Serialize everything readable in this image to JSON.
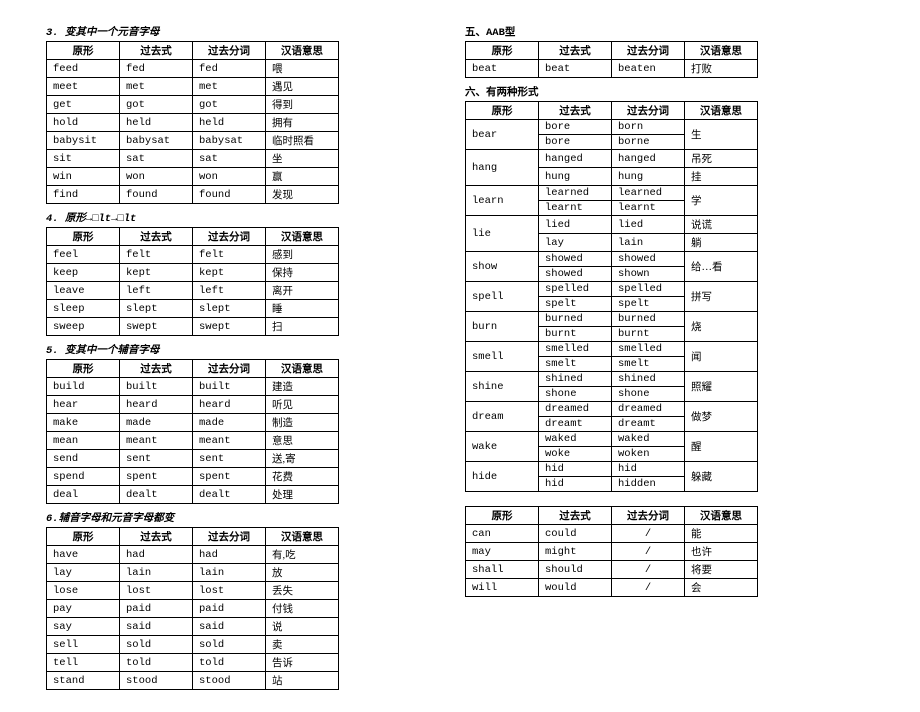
{
  "headers": {
    "c1": "原形",
    "c2": "过去式",
    "c3": "过去分词",
    "c4": "汉语意思"
  },
  "left": {
    "s3": {
      "title": "3. 变其中一个元音字母",
      "rows": [
        [
          "feed",
          "fed",
          "fed",
          "喂"
        ],
        [
          "meet",
          "met",
          "met",
          "遇见"
        ],
        [
          "get",
          "got",
          "got",
          "得到"
        ],
        [
          "hold",
          "held",
          "held",
          "拥有"
        ],
        [
          "babysit",
          "babysat",
          "babysat",
          "临时照看"
        ],
        [
          "sit",
          "sat",
          "sat",
          "坐"
        ],
        [
          "win",
          "won",
          "won",
          "赢"
        ],
        [
          "find",
          "found",
          "found",
          "发现"
        ]
      ]
    },
    "s4": {
      "title": "4. 原形→□lt→□lt",
      "rows": [
        [
          "feel",
          "felt",
          "felt",
          "感到"
        ],
        [
          "keep",
          "kept",
          "kept",
          "保持"
        ],
        [
          "leave",
          "left",
          "left",
          "离开"
        ],
        [
          "sleep",
          "slept",
          "slept",
          "睡"
        ],
        [
          "sweep",
          "swept",
          "swept",
          "扫"
        ]
      ]
    },
    "s5": {
      "title": "5. 变其中一个辅音字母",
      "rows": [
        [
          "build",
          "built",
          "built",
          "建造"
        ],
        [
          "hear",
          "heard",
          "heard",
          "听见"
        ],
        [
          "make",
          "made",
          "made",
          "制造"
        ],
        [
          "mean",
          "meant",
          "meant",
          "意思"
        ],
        [
          "send",
          "sent",
          "sent",
          "送,寄"
        ],
        [
          "spend",
          "spent",
          "spent",
          "花费"
        ],
        [
          "deal",
          "dealt",
          "dealt",
          "处理"
        ]
      ]
    },
    "s6": {
      "title": "6.辅音字母和元音字母都变",
      "rows": [
        [
          "have",
          "had",
          "had",
          "有,吃"
        ],
        [
          "lay",
          "lain",
          "lain",
          "放"
        ],
        [
          "lose",
          "lost",
          "lost",
          "丢失"
        ],
        [
          "pay",
          "paid",
          "paid",
          "付钱"
        ],
        [
          "say",
          "said",
          "said",
          "说"
        ],
        [
          "sell",
          "sold",
          "sold",
          "卖"
        ],
        [
          "tell",
          "told",
          "told",
          "告诉"
        ],
        [
          "stand",
          "stood",
          "stood",
          "站"
        ]
      ]
    }
  },
  "right": {
    "aab": {
      "title": "五、AAB型",
      "rows": [
        [
          "beat",
          "beat",
          "beaten",
          "打败"
        ]
      ]
    },
    "two": {
      "title": "六、有两种形式",
      "groups": [
        {
          "base": "bear",
          "rows": [
            [
              "bore",
              "born"
            ],
            [
              "bore",
              "borne"
            ]
          ],
          "cn": "生"
        },
        {
          "base": "hang",
          "rows": [
            [
              "hanged",
              "hanged"
            ],
            [
              "hung",
              "hung"
            ]
          ],
          "cn": [
            "吊死",
            "挂"
          ]
        },
        {
          "base": "learn",
          "rows": [
            [
              "learned",
              "learned"
            ],
            [
              "learnt",
              "learnt"
            ]
          ],
          "cn": "学"
        },
        {
          "base": "lie",
          "rows": [
            [
              "lied",
              "lied"
            ],
            [
              "lay",
              "lain"
            ]
          ],
          "cn": [
            "说谎",
            "躺"
          ]
        },
        {
          "base": "show",
          "rows": [
            [
              "showed",
              "showed"
            ],
            [
              "showed",
              "shown"
            ]
          ],
          "cn": "给…看"
        },
        {
          "base": "spell",
          "rows": [
            [
              "spelled",
              "spelled"
            ],
            [
              "spelt",
              "spelt"
            ]
          ],
          "cn": "拼写"
        },
        {
          "base": "burn",
          "rows": [
            [
              "burned",
              "burned"
            ],
            [
              "burnt",
              "burnt"
            ]
          ],
          "cn": "烧"
        },
        {
          "base": "smell",
          "rows": [
            [
              "smelled",
              "smelled"
            ],
            [
              "smelt",
              "smelt"
            ]
          ],
          "cn": "闻"
        },
        {
          "base": "shine",
          "rows": [
            [
              "shined",
              "shined"
            ],
            [
              "shone",
              "shone"
            ]
          ],
          "cn": "照耀"
        },
        {
          "base": "dream",
          "rows": [
            [
              "dreamed",
              "dreamed"
            ],
            [
              "dreamt",
              "dreamt"
            ]
          ],
          "cn": "做梦"
        },
        {
          "base": "wake",
          "rows": [
            [
              "waked",
              "waked"
            ],
            [
              "woke",
              "woken"
            ]
          ],
          "cn": "醒"
        },
        {
          "base": "hide",
          "rows": [
            [
              "hid",
              "hid"
            ],
            [
              "hid",
              "hidden"
            ]
          ],
          "cn": "躲藏"
        }
      ]
    },
    "modal": {
      "rows": [
        [
          "can",
          "could",
          "/",
          "能"
        ],
        [
          "may",
          "might",
          "/",
          "也许"
        ],
        [
          "shall",
          "should",
          "/",
          "将要"
        ],
        [
          "will",
          "would",
          "/",
          "会"
        ]
      ]
    }
  }
}
